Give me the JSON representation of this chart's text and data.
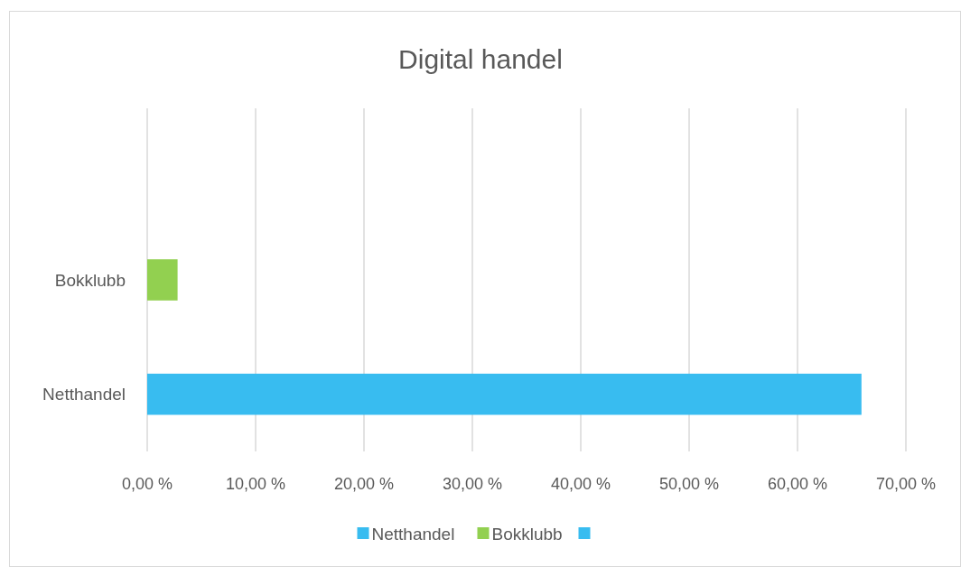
{
  "chart_data": {
    "type": "bar",
    "orientation": "horizontal",
    "title": "Digital handel",
    "categories": [
      null,
      "Bokklubb",
      "Netthandel"
    ],
    "series": [
      {
        "name": "Netthandel",
        "color": "#38bcf0",
        "values": [
          null,
          null,
          65.9
        ]
      },
      {
        "name": "Bokklubb",
        "color": "#92d050",
        "values": [
          null,
          2.8,
          null
        ]
      },
      {
        "color": "#38bcf0",
        "values": [
          null,
          null,
          null
        ]
      }
    ],
    "xlim": [
      0,
      70
    ],
    "xticks": [
      {
        "value": 0,
        "label": "0,00 %"
      },
      {
        "value": 10,
        "label": "10,00 %"
      },
      {
        "value": 20,
        "label": "20,00 %"
      },
      {
        "value": 30,
        "label": "30,00 %"
      },
      {
        "value": 40,
        "label": "40,00 %"
      },
      {
        "value": 50,
        "label": "50,00 %"
      },
      {
        "value": 60,
        "label": "60,00 %"
      },
      {
        "value": 70,
        "label": "70,00 %"
      }
    ],
    "grid": "x",
    "legend": "bottom"
  }
}
